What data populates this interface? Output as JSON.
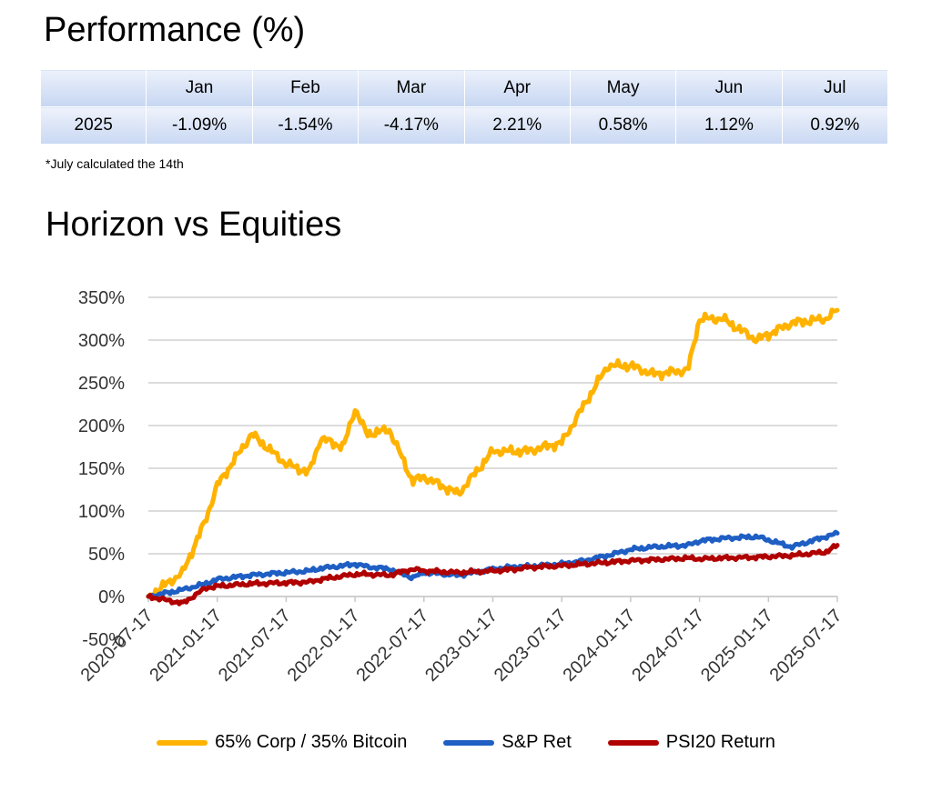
{
  "header": {
    "title": "Performance (%)"
  },
  "table": {
    "columns": [
      "",
      "Jan",
      "Feb",
      "Mar",
      "Apr",
      "May",
      "Jun",
      "Jul"
    ],
    "rows": [
      [
        "2025",
        "-1.09%",
        "-1.54%",
        "-4.17%",
        "2.21%",
        "0.58%",
        "1.12%",
        "0.92%"
      ]
    ]
  },
  "note": "*July calculated the 14th",
  "chart_title": "Horizon vs Equities",
  "chart_data": {
    "type": "line",
    "title": "Horizon vs Equities",
    "xlabel": "",
    "ylabel": "",
    "ylim": [
      -50,
      350
    ],
    "yticks": [
      "350%",
      "300%",
      "250%",
      "200%",
      "150%",
      "100%",
      "50%",
      "0%",
      "-50%"
    ],
    "ytick_values": [
      350,
      300,
      250,
      200,
      150,
      100,
      50,
      0,
      -50
    ],
    "xticks": [
      "2020-07-17",
      "2021-01-17",
      "2021-07-17",
      "2022-01-17",
      "2022-07-17",
      "2023-01-17",
      "2023-07-17",
      "2024-01-17",
      "2024-07-17",
      "2025-01-17",
      "2025-07-17"
    ],
    "x_months": [
      0,
      3,
      5,
      6,
      9,
      12,
      14,
      15,
      17,
      18,
      19,
      21,
      23,
      24,
      27,
      30,
      32,
      33,
      36,
      38,
      40,
      42,
      44,
      47,
      48,
      50,
      53,
      56,
      59,
      60
    ],
    "series": [
      {
        "name": "65% Corp / 35% Bitcoin",
        "color": "#FFB300",
        "values": [
          0,
          28,
          90,
          130,
          190,
          155,
          145,
          185,
          175,
          220,
          190,
          195,
          135,
          140,
          120,
          170,
          170,
          170,
          180,
          225,
          270,
          270,
          260,
          265,
          325,
          325,
          300,
          320,
          325,
          335
        ]
      },
      {
        "name": "S&P Ret",
        "color": "#1F5FC4",
        "values": [
          0,
          8,
          15,
          20,
          25,
          28,
          30,
          33,
          36,
          38,
          35,
          32,
          22,
          28,
          25,
          32,
          35,
          35,
          38,
          42,
          48,
          55,
          58,
          60,
          65,
          68,
          70,
          58,
          70,
          74
        ]
      },
      {
        "name": "PSI20 Return",
        "color": "#B00000",
        "values": [
          0,
          -8,
          10,
          12,
          15,
          16,
          17,
          20,
          24,
          26,
          26,
          25,
          32,
          30,
          28,
          30,
          32,
          34,
          36,
          38,
          40,
          42,
          43,
          45,
          44,
          45,
          46,
          48,
          52,
          60
        ]
      }
    ],
    "legend_position": "bottom"
  }
}
